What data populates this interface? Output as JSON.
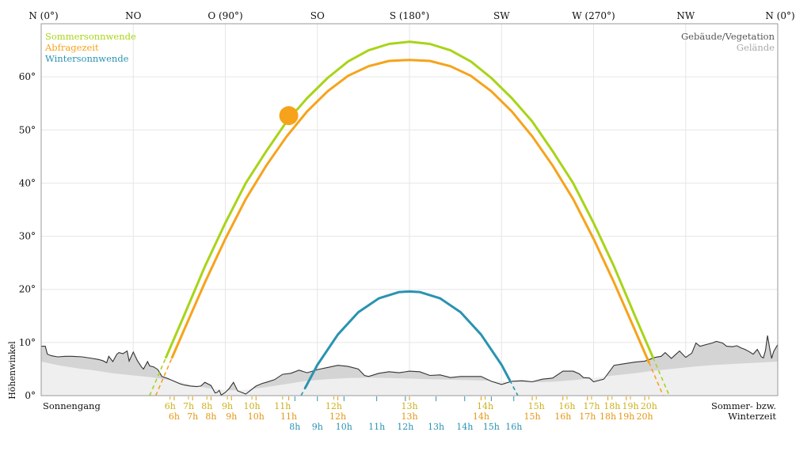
{
  "chart_data": {
    "type": "line",
    "title": "",
    "xlabel": "",
    "ylabel": "Höhenwinkel",
    "xlim": [
      0,
      360
    ],
    "ylim": [
      0,
      70
    ],
    "grid": true,
    "direction_labels": [
      {
        "azimuth": 0,
        "label": "N (0°)"
      },
      {
        "azimuth": 45,
        "label": "NO"
      },
      {
        "azimuth": 90,
        "label": "O (90°)"
      },
      {
        "azimuth": 135,
        "label": "SO"
      },
      {
        "azimuth": 180,
        "label": "S (180°)"
      },
      {
        "azimuth": 225,
        "label": "SW"
      },
      {
        "azimuth": 270,
        "label": "W (270°)"
      },
      {
        "azimuth": 315,
        "label": "NW"
      },
      {
        "azimuth": 360,
        "label": "N (0°)"
      }
    ],
    "y_ticks": [
      {
        "value": 0,
        "label": "0°"
      },
      {
        "value": 10,
        "label": "10°"
      },
      {
        "value": 20,
        "label": "20°"
      },
      {
        "value": 30,
        "label": "30°"
      },
      {
        "value": 40,
        "label": "40°"
      },
      {
        "value": 50,
        "label": "50°"
      },
      {
        "value": 60,
        "label": "60°"
      }
    ],
    "legend": [
      {
        "name": "Sommersonnwende",
        "color": "#a8d418"
      },
      {
        "name": "Abfragezeit",
        "color": "#f6a31b"
      },
      {
        "name": "Wintersonnwende",
        "color": "#2a93b1"
      }
    ],
    "horizon_legend": [
      {
        "name": "Gebäude/Vegetation",
        "color": "#555555"
      },
      {
        "name": "Gelände",
        "color": "#aaaaaa"
      }
    ],
    "bottom_left_label": "Sonnengang",
    "bottom_right_label": [
      "Sommer- bzw.",
      "Winterzeit"
    ],
    "series": [
      {
        "name": "Sommersonnwende",
        "color": "#a8d418",
        "x": [
          53,
          60,
          70,
          80,
          90,
          100,
          110,
          120,
          130,
          140,
          150,
          160,
          170,
          180,
          190,
          200,
          210,
          220,
          230,
          240,
          250,
          260,
          270,
          280,
          290,
          300,
          307
        ],
        "y": [
          0,
          6.3,
          15.2,
          24.3,
          32.5,
          40.0,
          46.0,
          51.6,
          56.0,
          59.8,
          62.9,
          65.0,
          66.2,
          66.6,
          66.2,
          65.0,
          62.9,
          59.8,
          56.0,
          51.6,
          46.0,
          40.0,
          32.5,
          24.3,
          15.2,
          6.3,
          0
        ]
      },
      {
        "name": "Abfragezeit",
        "color": "#f6a31b",
        "x": [
          56,
          60,
          70,
          80,
          90,
          100,
          110,
          120,
          130,
          140,
          150,
          160,
          170,
          180,
          190,
          200,
          210,
          220,
          230,
          240,
          250,
          260,
          270,
          280,
          290,
          300,
          304
        ],
        "y": [
          0,
          3.6,
          12.5,
          21.3,
          29.5,
          37.0,
          43.3,
          48.8,
          53.5,
          57.3,
          60.2,
          62.0,
          63.0,
          63.2,
          63.0,
          62.0,
          60.2,
          57.3,
          53.5,
          48.8,
          43.3,
          37.0,
          29.5,
          21.3,
          12.5,
          3.6,
          0
        ]
      },
      {
        "name": "Wintersonnwende",
        "color": "#2a93b1",
        "x": [
          127,
          135,
          145,
          155,
          165,
          175,
          180,
          185,
          195,
          205,
          215,
          225,
          233
        ],
        "y": [
          0,
          5.8,
          11.5,
          15.7,
          18.3,
          19.5,
          19.6,
          19.5,
          18.3,
          15.7,
          11.5,
          5.8,
          0
        ]
      }
    ],
    "visible_threshold": [
      {
        "series": "Sommersonnwende",
        "from_azimuth": 61,
        "to_azimuth": 299
      },
      {
        "series": "Abfragezeit",
        "from_azimuth": 64,
        "to_azimuth": 297
      },
      {
        "series": "Wintersonnwende",
        "from_azimuth": 129,
        "to_azimuth": 229
      }
    ],
    "current_sun": {
      "azimuth": 121,
      "elevation": 52.7,
      "color": "#f6a31b"
    },
    "horizon_buildings": {
      "color": "#666666",
      "x": [
        0,
        2,
        3,
        5,
        8,
        12,
        15,
        20,
        25,
        28,
        30,
        32,
        33,
        35,
        37,
        38,
        40,
        42,
        43,
        45,
        47,
        49,
        50,
        52,
        53,
        55,
        57,
        59,
        62,
        65,
        68,
        70,
        73,
        76,
        78,
        80,
        83,
        85,
        86,
        87,
        88,
        90,
        92,
        94,
        96,
        98,
        100,
        105,
        108,
        110,
        114,
        118,
        122,
        126,
        130,
        135,
        140,
        145,
        150,
        155,
        158,
        160,
        165,
        170,
        175,
        180,
        185,
        190,
        195,
        200,
        205,
        210,
        215,
        220,
        225,
        230,
        235,
        240,
        245,
        250,
        255,
        258,
        260,
        263,
        265,
        268,
        270,
        275,
        280,
        285,
        290,
        295,
        300,
        303,
        305,
        308,
        310,
        312,
        315,
        318,
        320,
        322,
        325,
        328,
        330,
        333,
        335,
        338,
        340,
        342,
        344,
        346,
        348,
        350,
        352,
        353,
        354,
        355,
        356,
        357,
        358,
        360
      ],
      "y": [
        9.3,
        9.3,
        7.8,
        7.5,
        7.3,
        7.4,
        7.4,
        7.3,
        7.0,
        6.8,
        6.6,
        6.2,
        7.4,
        6.4,
        7.8,
        8.1,
        7.9,
        8.4,
        6.5,
        8.2,
        6.6,
        5.4,
        5.0,
        6.4,
        5.6,
        5.4,
        4.9,
        3.6,
        3.2,
        2.7,
        2.2,
        2.0,
        1.8,
        1.7,
        1.8,
        2.5,
        1.9,
        0.5,
        0.6,
        1.0,
        0.1,
        0.6,
        1.4,
        2.5,
        0.9,
        0.6,
        0.3,
        1.8,
        2.3,
        2.5,
        3.0,
        4.0,
        4.2,
        4.8,
        4.3,
        4.9,
        5.3,
        5.7,
        5.5,
        5.0,
        3.8,
        3.6,
        4.2,
        4.5,
        4.3,
        4.6,
        4.5,
        3.8,
        3.9,
        3.4,
        3.6,
        3.6,
        3.6,
        2.7,
        2.1,
        2.7,
        2.8,
        2.6,
        3.1,
        3.3,
        4.6,
        4.6,
        4.6,
        4.1,
        3.4,
        3.3,
        2.6,
        3.1,
        5.7,
        6.0,
        6.3,
        6.5,
        7.2,
        7.4,
        8.1,
        7.0,
        7.7,
        8.4,
        7.2,
        8.0,
        9.9,
        9.3,
        9.6,
        9.9,
        10.2,
        9.9,
        9.3,
        9.2,
        9.4,
        9.0,
        8.7,
        8.3,
        7.8,
        8.7,
        7.3,
        7.1,
        8.5,
        11.3,
        9.0,
        7.0,
        8.3,
        9.6
      ]
    },
    "horizon_terrain": {
      "color": "#aaaaaa",
      "x": [
        0,
        5,
        10,
        15,
        20,
        25,
        30,
        35,
        40,
        45,
        50,
        55,
        60,
        65,
        70,
        75,
        80,
        85,
        90,
        95,
        100,
        110,
        120,
        130,
        140,
        150,
        160,
        170,
        180,
        190,
        200,
        210,
        220,
        230,
        240,
        250,
        260,
        270,
        280,
        290,
        300,
        310,
        320,
        330,
        340,
        350,
        360
      ],
      "y": [
        6.4,
        6.0,
        5.6,
        5.3,
        5.0,
        4.8,
        4.5,
        4.2,
        4.0,
        3.8,
        3.6,
        3.4,
        3.1,
        2.8,
        2.4,
        1.9,
        1.5,
        1.2,
        1.0,
        1.0,
        1.1,
        1.6,
        2.2,
        2.8,
        3.1,
        3.3,
        3.4,
        3.3,
        3.2,
        3.1,
        3.0,
        2.9,
        2.8,
        2.6,
        2.5,
        2.6,
        2.9,
        3.3,
        3.8,
        4.2,
        4.7,
        5.1,
        5.5,
        5.8,
        6.0,
        6.2,
        6.4
      ]
    },
    "hour_label_rows": [
      {
        "series": "Sommersonnwende",
        "color": "#cdb01a",
        "labels": [
          {
            "azimuth": 63,
            "label": "6h"
          },
          {
            "azimuth": 72,
            "label": "7h"
          },
          {
            "azimuth": 81,
            "label": "8h"
          },
          {
            "azimuth": 91,
            "label": "9h"
          },
          {
            "azimuth": 103,
            "label": "10h"
          },
          {
            "azimuth": 118,
            "label": "11h"
          },
          {
            "azimuth": 143,
            "label": "12h"
          },
          {
            "azimuth": 180,
            "label": "13h"
          },
          {
            "azimuth": 217,
            "label": "14h"
          },
          {
            "azimuth": 242,
            "label": "15h"
          },
          {
            "azimuth": 257,
            "label": "16h"
          },
          {
            "azimuth": 269,
            "label": "17h"
          },
          {
            "azimuth": 279,
            "label": "18h"
          },
          {
            "azimuth": 288,
            "label": "19h"
          },
          {
            "azimuth": 297,
            "label": "20h"
          }
        ]
      },
      {
        "series": "Abfragezeit",
        "color": "#e59612",
        "labels": [
          {
            "azimuth": 65,
            "label": "6h"
          },
          {
            "azimuth": 74,
            "label": "7h"
          },
          {
            "azimuth": 83,
            "label": "8h"
          },
          {
            "azimuth": 93,
            "label": "9h"
          },
          {
            "azimuth": 105,
            "label": "10h"
          },
          {
            "azimuth": 121,
            "label": "11h"
          },
          {
            "azimuth": 145,
            "label": "12h"
          },
          {
            "azimuth": 180,
            "label": "13h"
          },
          {
            "azimuth": 215,
            "label": "14h"
          },
          {
            "azimuth": 240,
            "label": "15h"
          },
          {
            "azimuth": 255,
            "label": "16h"
          },
          {
            "azimuth": 267,
            "label": "17h"
          },
          {
            "azimuth": 277,
            "label": "18h"
          },
          {
            "azimuth": 286,
            "label": "19h"
          },
          {
            "azimuth": 295,
            "label": "20h"
          }
        ]
      },
      {
        "series": "Wintersonnwende",
        "color": "#2a93b1",
        "labels": [
          {
            "azimuth": 124,
            "label": "8h"
          },
          {
            "azimuth": 135,
            "label": "9h"
          },
          {
            "azimuth": 148,
            "label": "10h"
          },
          {
            "azimuth": 164,
            "label": "11h"
          },
          {
            "azimuth": 178,
            "label": "12h"
          },
          {
            "azimuth": 193,
            "label": "13h"
          },
          {
            "azimuth": 207,
            "label": "14h"
          },
          {
            "azimuth": 220,
            "label": "15h"
          },
          {
            "azimuth": 231,
            "label": "16h"
          }
        ]
      }
    ]
  }
}
